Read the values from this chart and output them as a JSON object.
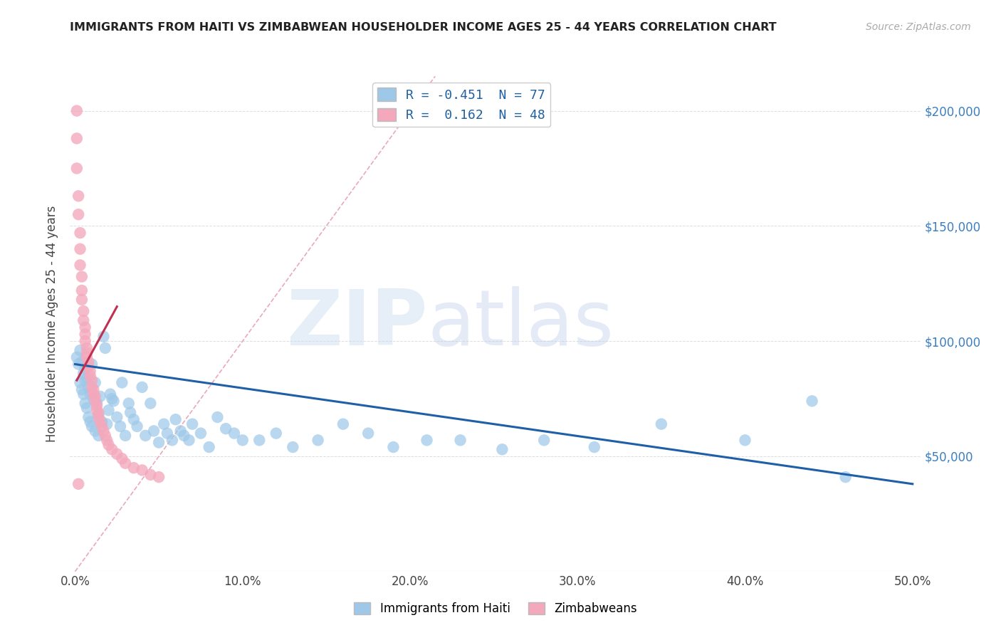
{
  "title": "IMMIGRANTS FROM HAITI VS ZIMBABWEAN HOUSEHOLDER INCOME AGES 25 - 44 YEARS CORRELATION CHART",
  "source": "Source: ZipAtlas.com",
  "ylabel": "Householder Income Ages 25 - 44 years",
  "legend_R_blue": "R = -0.451  N = 77",
  "legend_R_pink": "R =  0.162  N = 48",
  "legend_label_blue": "Immigrants from Haiti",
  "legend_label_pink": "Zimbabweans",
  "watermark_zip": "ZIP",
  "watermark_atlas": "atlas",
  "blue_color": "#9ec8e8",
  "pink_color": "#f4a8bc",
  "blue_line_color": "#1f5fa6",
  "pink_line_color": "#c03050",
  "diag_color": "#e8a0b0",
  "xlim": [
    -0.003,
    0.505
  ],
  "ylim": [
    0,
    215000
  ],
  "xtick_vals": [
    0.0,
    0.1,
    0.2,
    0.3,
    0.4,
    0.5
  ],
  "xtick_labels": [
    "0.0%",
    "10.0%",
    "20.0%",
    "30.0%",
    "40.0%",
    "50.0%"
  ],
  "ytick_vals": [
    0,
    50000,
    100000,
    150000,
    200000
  ],
  "ytick_right_labels": [
    "",
    "$50,000",
    "$100,000",
    "$150,000",
    "$200,000"
  ],
  "blue_reg": [
    0.0,
    0.5,
    90000,
    38000
  ],
  "pink_reg": [
    0.001,
    0.025,
    83000,
    115000
  ],
  "diag_line": [
    [
      0.0,
      0.215
    ],
    [
      0,
      215000
    ]
  ],
  "blue_pts_x": [
    0.001,
    0.002,
    0.003,
    0.003,
    0.004,
    0.004,
    0.005,
    0.005,
    0.006,
    0.006,
    0.006,
    0.007,
    0.007,
    0.008,
    0.008,
    0.009,
    0.009,
    0.01,
    0.01,
    0.011,
    0.012,
    0.012,
    0.013,
    0.014,
    0.014,
    0.015,
    0.016,
    0.017,
    0.018,
    0.019,
    0.02,
    0.021,
    0.022,
    0.023,
    0.025,
    0.027,
    0.028,
    0.03,
    0.032,
    0.033,
    0.035,
    0.037,
    0.04,
    0.042,
    0.045,
    0.047,
    0.05,
    0.053,
    0.055,
    0.058,
    0.06,
    0.063,
    0.065,
    0.068,
    0.07,
    0.075,
    0.08,
    0.085,
    0.09,
    0.095,
    0.1,
    0.11,
    0.12,
    0.13,
    0.145,
    0.16,
    0.175,
    0.19,
    0.21,
    0.23,
    0.255,
    0.28,
    0.31,
    0.35,
    0.4,
    0.44,
    0.46
  ],
  "blue_pts_y": [
    93000,
    90000,
    96000,
    82000,
    91000,
    79000,
    86000,
    77000,
    88000,
    83000,
    73000,
    84000,
    71000,
    80000,
    67000,
    77000,
    65000,
    90000,
    63000,
    75000,
    82000,
    61000,
    73000,
    68000,
    59000,
    76000,
    65000,
    102000,
    97000,
    64000,
    70000,
    77000,
    75000,
    74000,
    67000,
    63000,
    82000,
    59000,
    73000,
    69000,
    66000,
    63000,
    80000,
    59000,
    73000,
    61000,
    56000,
    64000,
    60000,
    57000,
    66000,
    61000,
    59000,
    57000,
    64000,
    60000,
    54000,
    67000,
    62000,
    60000,
    57000,
    57000,
    60000,
    54000,
    57000,
    64000,
    60000,
    54000,
    57000,
    57000,
    53000,
    57000,
    54000,
    64000,
    57000,
    74000,
    41000
  ],
  "pink_pts_x": [
    0.001,
    0.001,
    0.001,
    0.002,
    0.002,
    0.003,
    0.003,
    0.003,
    0.004,
    0.004,
    0.004,
    0.005,
    0.005,
    0.006,
    0.006,
    0.006,
    0.007,
    0.007,
    0.007,
    0.008,
    0.008,
    0.009,
    0.009,
    0.01,
    0.01,
    0.011,
    0.011,
    0.012,
    0.012,
    0.013,
    0.013,
    0.014,
    0.014,
    0.015,
    0.016,
    0.017,
    0.018,
    0.019,
    0.02,
    0.022,
    0.025,
    0.028,
    0.03,
    0.035,
    0.04,
    0.045,
    0.05,
    0.002
  ],
  "pink_pts_y": [
    200000,
    188000,
    175000,
    163000,
    155000,
    147000,
    140000,
    133000,
    128000,
    122000,
    118000,
    113000,
    109000,
    106000,
    103000,
    100000,
    97000,
    95000,
    93000,
    91000,
    89000,
    87000,
    85000,
    83000,
    80000,
    79000,
    77000,
    76000,
    74000,
    72000,
    70000,
    69000,
    67000,
    65000,
    63000,
    61000,
    59000,
    57000,
    55000,
    53000,
    51000,
    49000,
    47000,
    45000,
    44000,
    42000,
    41000,
    38000
  ]
}
